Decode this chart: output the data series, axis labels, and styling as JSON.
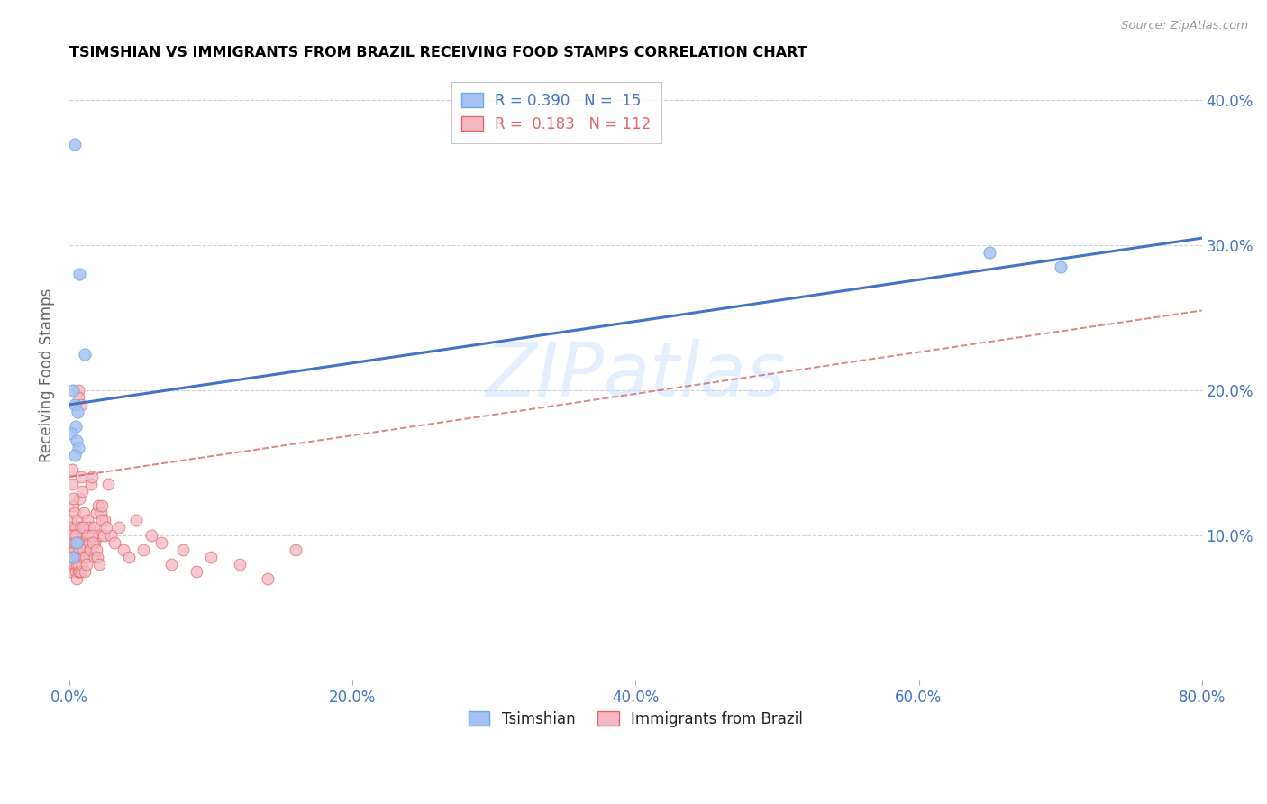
{
  "title": "TSIMSHIAN VS IMMIGRANTS FROM BRAZIL RECEIVING FOOD STAMPS CORRELATION CHART",
  "source": "Source: ZipAtlas.com",
  "xlabel_ticks": [
    "0.0%",
    "20.0%",
    "40.0%",
    "60.0%",
    "80.0%"
  ],
  "xlabel_values": [
    0.0,
    20.0,
    40.0,
    60.0,
    80.0
  ],
  "ylabel": "Receiving Food Stamps",
  "ylabel_ticks": [
    "10.0%",
    "20.0%",
    "30.0%",
    "40.0%"
  ],
  "ylabel_values": [
    10.0,
    20.0,
    30.0,
    40.0
  ],
  "xlim": [
    0.0,
    80.0
  ],
  "ylim": [
    0.0,
    42.0
  ],
  "blue_R": 0.39,
  "blue_N": 15,
  "pink_R": 0.183,
  "pink_N": 112,
  "blue_label": "Tsimshian",
  "pink_label": "Immigrants from Brazil",
  "watermark": "ZIPatlas",
  "blue_color": "#a4c2f4",
  "pink_color": "#f4b8c1",
  "blue_edge_color": "#6fa8dc",
  "pink_edge_color": "#e06666",
  "blue_line_color": "#4472c4",
  "pink_line_color": "#cc4444",
  "background_color": "#ffffff",
  "title_color": "#000000",
  "axis_label_color": "#4472c4",
  "grid_color": "#d0d0d0",
  "blue_line_y0": 19.0,
  "blue_line_y1": 30.5,
  "pink_line_y0": 14.0,
  "pink_line_y1": 25.5,
  "blue_scatter_x": [
    0.4,
    0.7,
    1.1,
    0.25,
    0.35,
    0.55,
    0.45,
    0.15,
    0.5,
    0.6,
    0.35,
    0.5,
    65.0,
    70.0,
    0.25
  ],
  "blue_scatter_y": [
    37.0,
    28.0,
    22.5,
    20.0,
    19.0,
    18.5,
    17.5,
    17.0,
    16.5,
    16.0,
    15.5,
    9.5,
    29.5,
    28.5,
    8.5
  ],
  "pink_scatter_x": [
    0.05,
    0.08,
    0.1,
    0.12,
    0.15,
    0.18,
    0.2,
    0.22,
    0.25,
    0.28,
    0.3,
    0.33,
    0.35,
    0.38,
    0.4,
    0.43,
    0.45,
    0.48,
    0.5,
    0.53,
    0.55,
    0.58,
    0.6,
    0.63,
    0.65,
    0.68,
    0.7,
    0.73,
    0.75,
    0.78,
    0.8,
    0.85,
    0.9,
    0.95,
    1.0,
    1.05,
    1.1,
    1.15,
    1.2,
    1.25,
    1.3,
    1.4,
    1.5,
    1.6,
    1.7,
    1.8,
    1.9,
    2.0,
    2.1,
    2.2,
    2.3,
    2.4,
    2.5,
    2.7,
    2.9,
    3.2,
    3.5,
    3.8,
    4.2,
    4.7,
    5.2,
    5.8,
    6.5,
    7.2,
    8.0,
    9.0,
    10.0,
    12.0,
    14.0,
    16.0,
    0.06,
    0.09,
    0.13,
    0.16,
    0.19,
    0.23,
    0.26,
    0.29,
    0.32,
    0.36,
    0.39,
    0.42,
    0.46,
    0.49,
    0.52,
    0.56,
    0.59,
    0.62,
    0.66,
    0.69,
    0.72,
    0.76,
    0.79,
    0.82,
    0.88,
    0.93,
    0.98,
    1.03,
    1.08,
    1.13,
    1.18,
    1.28,
    1.38,
    1.48,
    1.58,
    1.68,
    1.78,
    1.88,
    1.98,
    2.08,
    2.3,
    2.6
  ],
  "pink_scatter_y": [
    9.5,
    9.0,
    8.5,
    11.0,
    10.5,
    14.5,
    13.5,
    8.0,
    12.0,
    10.0,
    9.0,
    8.5,
    9.5,
    11.5,
    9.5,
    10.5,
    10.0,
    8.5,
    8.0,
    9.0,
    9.5,
    11.0,
    20.0,
    19.5,
    10.0,
    9.5,
    12.5,
    9.0,
    10.5,
    8.5,
    14.0,
    19.0,
    13.0,
    9.5,
    11.5,
    9.0,
    10.5,
    9.5,
    8.5,
    11.0,
    9.0,
    10.5,
    13.5,
    14.0,
    10.5,
    9.5,
    11.5,
    12.0,
    10.0,
    11.5,
    12.0,
    10.0,
    11.0,
    13.5,
    10.0,
    9.5,
    10.5,
    9.0,
    8.5,
    11.0,
    9.0,
    10.0,
    9.5,
    8.0,
    9.0,
    7.5,
    8.5,
    8.0,
    7.0,
    9.0,
    8.0,
    7.5,
    9.0,
    10.0,
    8.5,
    12.5,
    9.5,
    8.0,
    8.5,
    9.0,
    9.5,
    10.0,
    7.5,
    8.0,
    7.0,
    9.5,
    8.5,
    7.5,
    8.0,
    7.5,
    9.0,
    8.5,
    7.5,
    9.5,
    8.0,
    10.5,
    9.0,
    8.5,
    7.5,
    8.5,
    8.0,
    10.0,
    9.5,
    9.0,
    10.0,
    9.5,
    8.5,
    9.0,
    8.5,
    8.0,
    11.0,
    10.5
  ]
}
